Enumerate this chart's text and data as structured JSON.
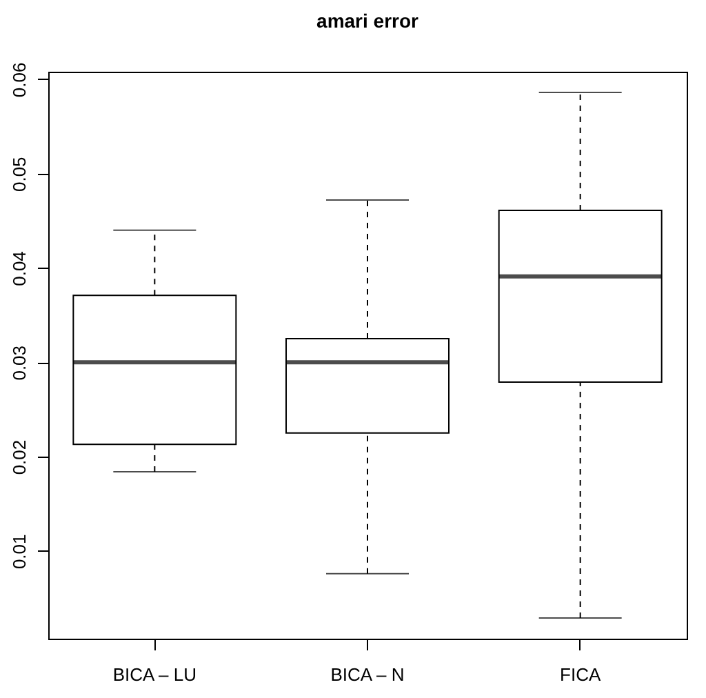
{
  "chart_data": {
    "type": "box",
    "title": "amari error",
    "categories": [
      "BICA – LU",
      "BICA – N",
      "FICA"
    ],
    "boxes": [
      {
        "low": 0.0184,
        "q1": 0.0213,
        "median": 0.03,
        "q3": 0.0371,
        "high": 0.044
      },
      {
        "low": 0.0076,
        "q1": 0.0225,
        "median": 0.03,
        "q3": 0.0325,
        "high": 0.0472
      },
      {
        "low": 0.0029,
        "q1": 0.0279,
        "median": 0.0391,
        "q3": 0.0461,
        "high": 0.0586
      }
    ],
    "ylim": [
      0.0007,
      0.0608
    ],
    "yticks": [
      0.01,
      0.02,
      0.03,
      0.04,
      0.05,
      0.06
    ],
    "grid": false
  }
}
